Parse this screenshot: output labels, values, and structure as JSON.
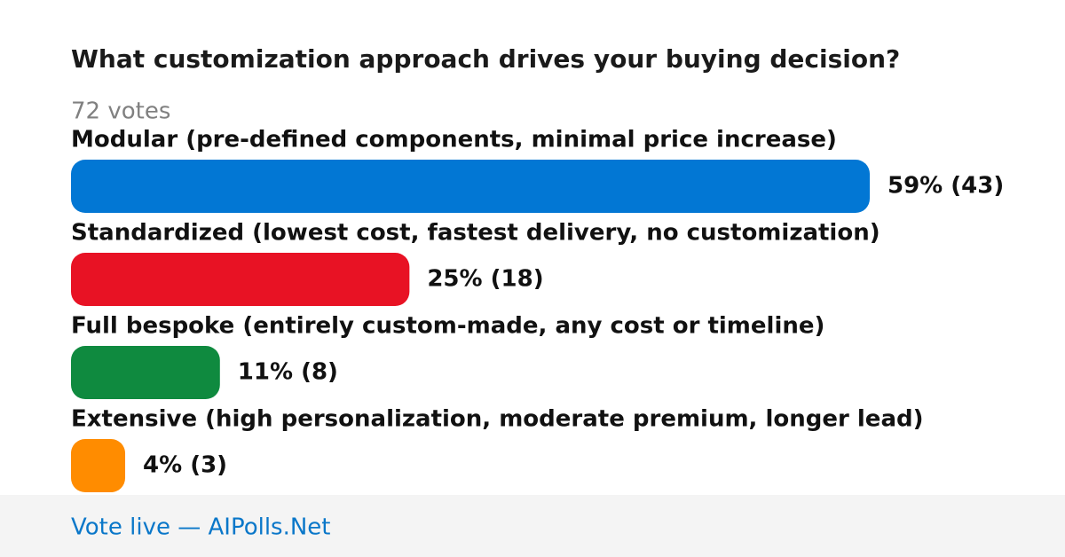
{
  "chart_data": {
    "type": "bar",
    "orientation": "horizontal",
    "title": "What customization approach drives your buying decision?",
    "subtitle": "72 votes",
    "categories": [
      "Modular (pre-defined components, minimal price increase)",
      "Standardized (lowest cost, fastest delivery, no customization)",
      "Full bespoke (entirely custom-made, any cost or timeline)",
      "Extensive (high personalization, moderate premium, longer lead)"
    ],
    "values": [
      59,
      25,
      11,
      4
    ],
    "counts": [
      43,
      18,
      8,
      3
    ],
    "value_labels": [
      "59% (43)",
      "25% (18)",
      "11% (8)",
      "4% (3)"
    ],
    "colors": [
      "#0277d4",
      "#e81224",
      "#0f8a3f",
      "#ff8c00"
    ],
    "footer": "Vote live — AIPolls.Net"
  }
}
